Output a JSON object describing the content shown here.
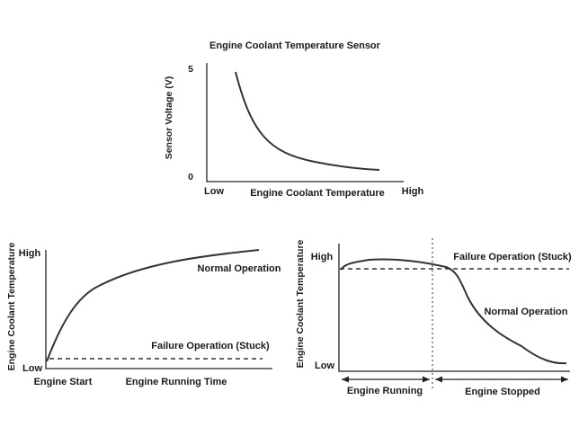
{
  "top_chart": {
    "title": "Engine Coolant Temperature Sensor",
    "ylabel": "Sensor Voltage (V)",
    "y_high": "5",
    "y_low": "0",
    "x_low": "Low",
    "xlabel": "Engine Coolant Temperature",
    "x_high": "High"
  },
  "left_chart": {
    "ylabel": "Engine Coolant Temperature",
    "y_high": "High",
    "y_low": "Low",
    "x_start": "Engine Start",
    "xlabel": "Engine Running Time",
    "normal_label": "Normal Operation",
    "failure_label": "Failure Operation (Stuck)"
  },
  "right_chart": {
    "ylabel": "Engine Coolant Temperature",
    "y_high": "High",
    "y_low": "Low",
    "failure_label": "Failure Operation (Stuck)",
    "normal_label": "Normal Operation",
    "running_label": "Engine Running",
    "stopped_label": "Engine Stopped"
  }
}
